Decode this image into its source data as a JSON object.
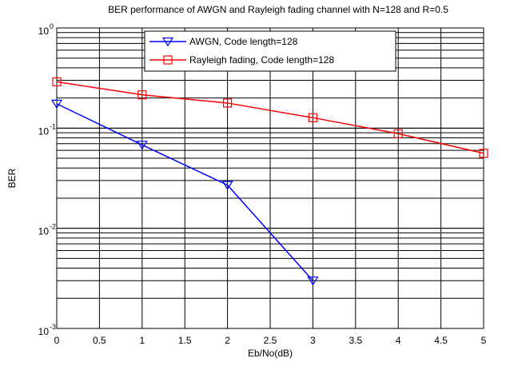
{
  "chart_data": {
    "type": "line",
    "title": "BER performance of AWGN and Rayleigh fading channel with N=128 and R=0.5",
    "xlabel": "Eb/No(dB)",
    "ylabel": "BER",
    "xlim": [
      0,
      5
    ],
    "ylim": [
      0.001,
      1
    ],
    "yscale": "log",
    "grid": true,
    "legend_position": "top-right",
    "x_ticks": [
      0,
      0.5,
      1,
      1.5,
      2,
      2.5,
      3,
      3.5,
      4,
      4.5,
      5
    ],
    "x_tick_labels": [
      "0",
      "0.5",
      "1",
      "1.5",
      "2",
      "2.5",
      "3",
      "3.5",
      "4",
      "4.5",
      "5"
    ],
    "y_ticks": [
      {
        "base": "10",
        "exp": "-3",
        "value": 0.001
      },
      {
        "base": "10",
        "exp": "-2",
        "value": 0.01
      },
      {
        "base": "10",
        "exp": "-1",
        "value": 0.1
      },
      {
        "base": "10",
        "exp": "0",
        "value": 1
      }
    ],
    "series": [
      {
        "name": "AWGN, Code length=128",
        "color": "#0000ff",
        "marker": "triangle-down",
        "x": [
          0,
          1,
          2,
          3
        ],
        "y": [
          0.175,
          0.068,
          0.027,
          0.003
        ]
      },
      {
        "name": "Rayleigh fading, Code length=128",
        "color": "#ff0000",
        "marker": "square",
        "x": [
          0,
          1,
          2,
          3,
          4,
          5
        ],
        "y": [
          0.29,
          0.215,
          0.178,
          0.127,
          0.088,
          0.056
        ]
      }
    ]
  },
  "colors": {
    "axis": "#000000",
    "grid": "#000000",
    "watermark": "#dbe9f4"
  }
}
